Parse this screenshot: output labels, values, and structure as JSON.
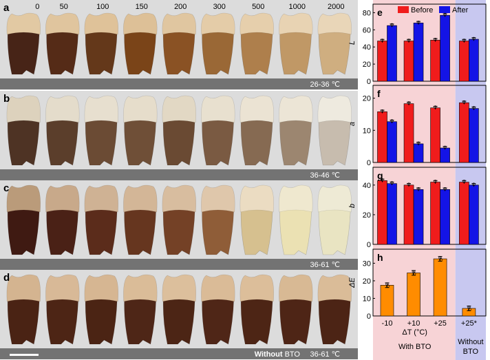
{
  "photo_panels": [
    {
      "letter": "a",
      "label": "26-36 ℃",
      "headers": [
        "0",
        "50",
        "100",
        "150",
        "200",
        "300",
        "500",
        "1000",
        "2000"
      ],
      "crown": [
        "#e2c9a3",
        "#e0c59e",
        "#dfc299",
        "#ddc097",
        "#e0c6a0",
        "#e4cca8",
        "#e6cfac",
        "#e8d3b3",
        "#e9d6b8"
      ],
      "root": [
        "#472417",
        "#552b17",
        "#64381a",
        "#7a4418",
        "#8a5224",
        "#9a6836",
        "#ae7f4c",
        "#c09866",
        "#cfae80"
      ]
    },
    {
      "letter": "b",
      "label": "36-46 ℃",
      "headers": [],
      "crown": [
        "#ddd2bd",
        "#e4dccb",
        "#e7dfcf",
        "#e6ddcb",
        "#e2d8c4",
        "#e8e0cf",
        "#ebe3d3",
        "#ece5d6",
        "#eeeadf"
      ],
      "root": [
        "#4e3324",
        "#5b3e2b",
        "#6b4b34",
        "#6f4f37",
        "#6a4a33",
        "#7a5a42",
        "#866a52",
        "#9c8670",
        "#c7bcae"
      ]
    },
    {
      "letter": "c",
      "label": "36-61 ℃",
      "headers": [],
      "crown": [
        "#ba9b7a",
        "#c8a98a",
        "#cfb294",
        "#d3b697",
        "#d8bd9f",
        "#dfc7ab",
        "#ebdcc2",
        "#efe8cf",
        "#eeead5"
      ],
      "root": [
        "#3f1a12",
        "#4a2116",
        "#5b2c1b",
        "#66361f",
        "#744126",
        "#8f5d38",
        "#d6c08f",
        "#ebe1b3",
        "#e9e4c2"
      ]
    },
    {
      "letter": "d",
      "label": "36-61 ℃",
      "label_bold": "Without",
      "label_rest": "BTO",
      "headers": [],
      "crown": [
        "#d4b490",
        "#d8b997",
        "#d6b692",
        "#dabc98",
        "#dcbf9c",
        "#dabb97",
        "#dcbe9a",
        "#d8b994",
        "#dabc98"
      ],
      "root": [
        "#4a2314",
        "#4d2515",
        "#4b2414",
        "#4e2617",
        "#4c2515",
        "#4f2617",
        "#4d2515",
        "#4e2516",
        "#4c2415"
      ]
    }
  ],
  "chart_data": {
    "type": "bar",
    "categories": [
      "-10",
      "+10",
      "+25",
      "+25*"
    ],
    "legend": [
      "Before",
      "After"
    ],
    "colors": {
      "before": "#f01c1c",
      "after": "#1414e6",
      "orange": "#ff8c00",
      "pink": "#f7d3d6",
      "purple": "#c8c8f0"
    },
    "panels": [
      {
        "letter": "e",
        "ylabel": "L",
        "ylim": [
          0,
          90
        ],
        "yticks": [
          0,
          20,
          40,
          60,
          80
        ],
        "series": [
          {
            "name": "Before",
            "values": [
              47,
              47,
              48,
              47
            ]
          },
          {
            "name": "After",
            "values": [
              65,
              68,
              77,
              49
            ]
          }
        ]
      },
      {
        "letter": "f",
        "ylabel": "a",
        "ylim": [
          0,
          24
        ],
        "yticks": [
          0,
          10,
          20
        ],
        "series": [
          {
            "name": "Before",
            "values": [
              15.8,
              18.3,
              17.0,
              18.6
            ]
          },
          {
            "name": "After",
            "values": [
              12.7,
              5.8,
              4.5,
              16.8
            ]
          }
        ]
      },
      {
        "letter": "g",
        "ylabel": "b",
        "ylim": [
          0,
          52
        ],
        "yticks": [
          0,
          20,
          40
        ],
        "series": [
          {
            "name": "Before",
            "values": [
              43,
              40,
              42,
              42
            ]
          },
          {
            "name": "After",
            "values": [
              41,
              37,
              37,
              40
            ]
          }
        ]
      },
      {
        "letter": "h",
        "ylabel": "ΔE",
        "ylim": [
          0,
          38
        ],
        "yticks": [
          0,
          10,
          20,
          30
        ],
        "series": [
          {
            "name": "ΔE",
            "values": [
              17.5,
              24.5,
              32.5,
              4.3
            ]
          }
        ]
      }
    ],
    "xlabel": "ΔT (°C)",
    "group_labels": {
      "with": "With BTO",
      "without_1": "Without",
      "without_2": "BTO"
    }
  }
}
